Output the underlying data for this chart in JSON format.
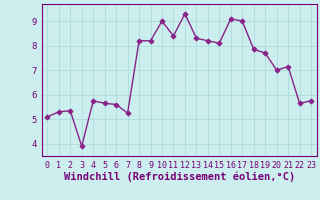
{
  "x": [
    0,
    1,
    2,
    3,
    4,
    5,
    6,
    7,
    8,
    9,
    10,
    11,
    12,
    13,
    14,
    15,
    16,
    17,
    18,
    19,
    20,
    21,
    22,
    23
  ],
  "y": [
    5.1,
    5.3,
    5.35,
    3.9,
    5.75,
    5.65,
    5.6,
    5.25,
    8.2,
    8.2,
    9.0,
    8.4,
    9.3,
    8.3,
    8.2,
    8.1,
    9.1,
    9.0,
    7.85,
    7.7,
    7.0,
    7.15,
    5.65,
    5.75
  ],
  "line_color": "#882288",
  "marker": "D",
  "marker_size": 2.5,
  "marker_linewidth": 0.8,
  "line_width": 1.0,
  "bg_color": "#cceeee",
  "grid_color": "#aadddd",
  "xlabel": "Windchill (Refroidissement éolien,°C)",
  "xlabel_fontsize": 7.5,
  "ylabel_ticks": [
    4,
    5,
    6,
    7,
    8,
    9
  ],
  "xtick_labels": [
    "0",
    "1",
    "2",
    "3",
    "4",
    "5",
    "6",
    "7",
    "8",
    "9",
    "10",
    "11",
    "12",
    "13",
    "14",
    "15",
    "16",
    "17",
    "18",
    "19",
    "20",
    "21",
    "22",
    "23"
  ],
  "ylim": [
    3.5,
    9.7
  ],
  "xlim": [
    -0.5,
    23.5
  ],
  "tick_fontsize": 6.0,
  "tick_color": "#770077",
  "spine_color": "#770077"
}
